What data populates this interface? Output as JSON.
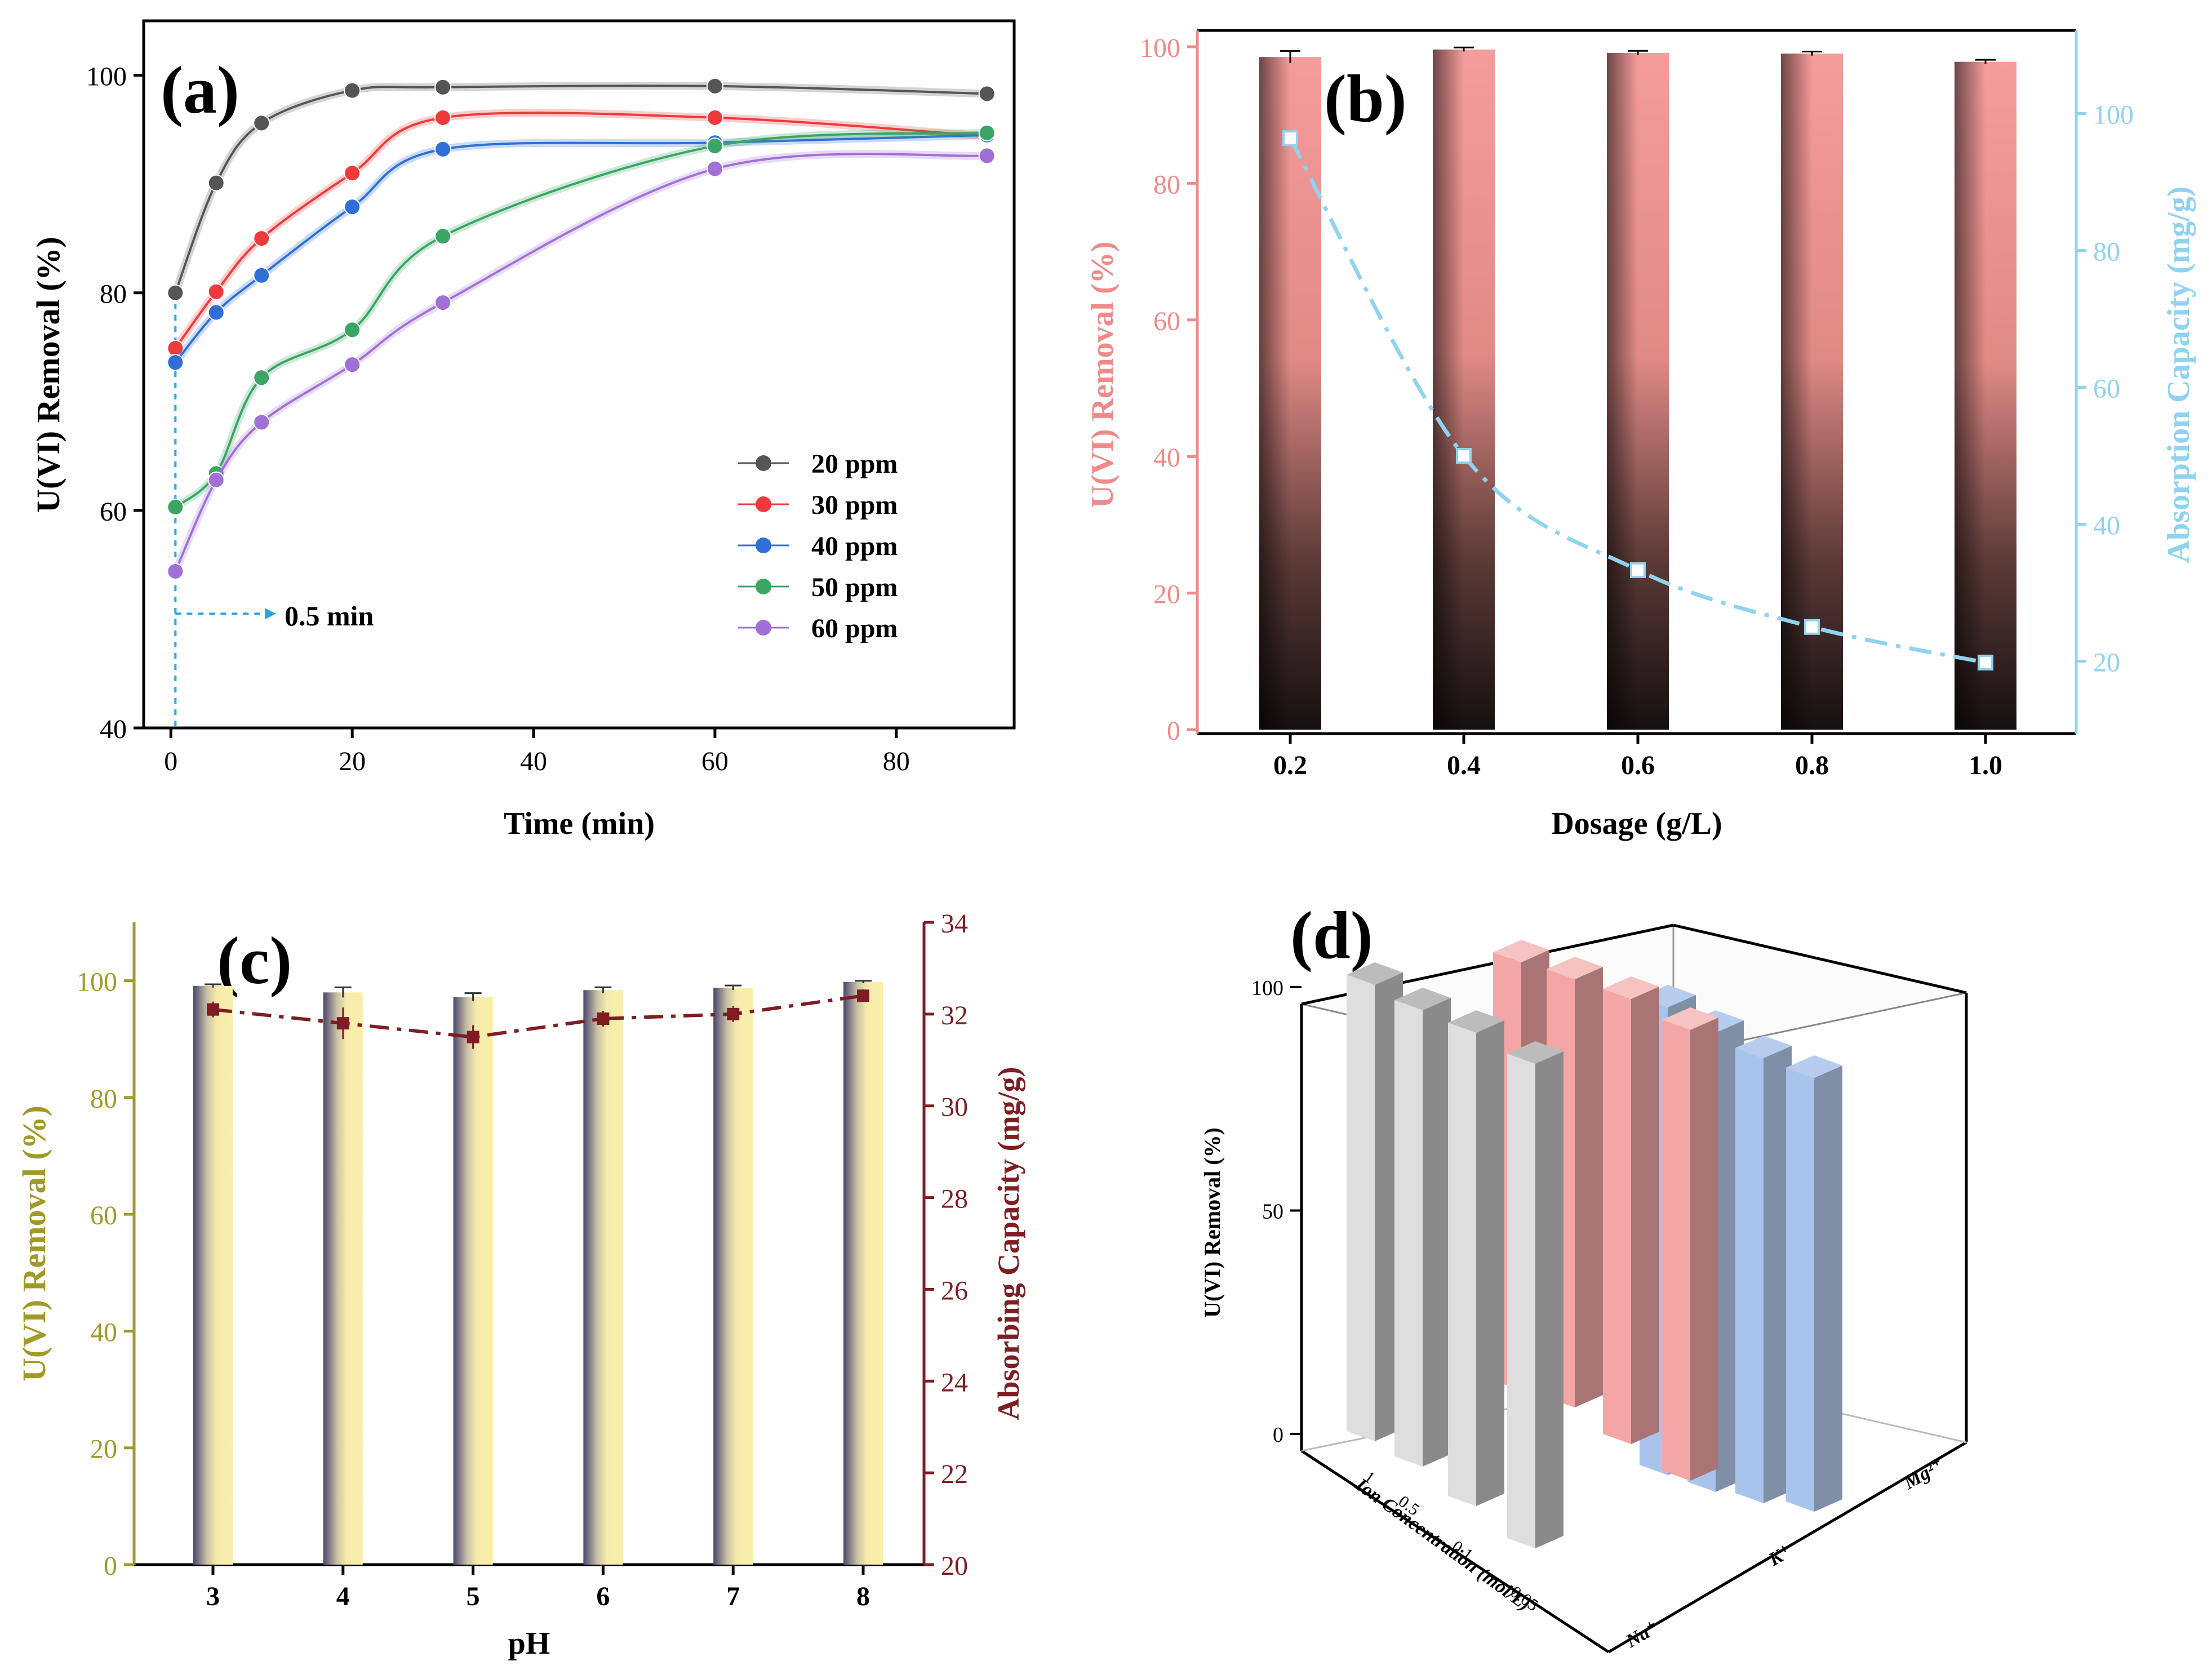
{
  "chart_data": [
    {
      "panel": "(a)",
      "type": "line",
      "xlabel": "Time (min)",
      "ylabel": "U(VI) Removal (%)",
      "xlim": [
        -3,
        93
      ],
      "ylim": [
        40,
        105
      ],
      "xticks": [
        0,
        20,
        40,
        60,
        80
      ],
      "yticks": [
        40,
        60,
        80,
        100
      ],
      "x": [
        0.5,
        5,
        10,
        20,
        30,
        60,
        90
      ],
      "series": [
        {
          "name": "20 ppm",
          "color": "#555555",
          "values": [
            80.0,
            90.1,
            95.6,
            98.6,
            98.9,
            99.0,
            98.3
          ]
        },
        {
          "name": "30 ppm",
          "color": "#ee3a3a",
          "values": [
            74.9,
            80.1,
            85.0,
            91.0,
            96.1,
            96.1,
            94.4
          ]
        },
        {
          "name": "40 ppm",
          "color": "#2f6fd6",
          "values": [
            73.6,
            78.2,
            81.6,
            87.9,
            93.2,
            93.8,
            94.5
          ]
        },
        {
          "name": "50 ppm",
          "color": "#3aa564",
          "values": [
            60.3,
            63.4,
            72.2,
            76.6,
            85.2,
            93.5,
            94.7
          ]
        },
        {
          "name": "60 ppm",
          "color": "#a070d6",
          "values": [
            54.4,
            62.8,
            68.1,
            73.4,
            79.1,
            91.4,
            92.6
          ]
        }
      ],
      "annotation": "0.5 min"
    },
    {
      "panel": "(b)",
      "type": "bar",
      "xlabel": "Dosage (g/L)",
      "ylabel": "U(VI) Removal (%)",
      "ylabel_right": "Absorption Capacity (mg/g)",
      "categories": [
        "0.2",
        "0.4",
        "0.6",
        "0.8",
        "1.0"
      ],
      "ylim": [
        0,
        100
      ],
      "yticks": [
        0,
        20,
        40,
        60,
        80,
        100
      ],
      "ylim_right": [
        10,
        110
      ],
      "yticks_right": [
        20,
        40,
        60,
        80,
        100
      ],
      "series": [
        {
          "name": "U(VI) Removal (%)",
          "color": "#f4a2a2",
          "values": [
            98.5,
            99.6,
            99.1,
            99.0,
            97.8
          ],
          "errors": [
            0.9,
            0.3,
            0.3,
            0.3,
            0.3
          ]
        },
        {
          "name": "Absorption Capacity (mg/g)",
          "color": "#8fd3f0",
          "values": [
            96.4,
            50.0,
            33.3,
            25.0,
            19.8
          ]
        }
      ]
    },
    {
      "panel": "(c)",
      "type": "bar",
      "xlabel": "pH",
      "ylabel": "U(VI) Removal (%)",
      "ylabel_right": "Absorbing Capacity (mg/g)",
      "categories": [
        "3",
        "4",
        "5",
        "6",
        "7",
        "8"
      ],
      "ylim": [
        0,
        110
      ],
      "yticks": [
        0,
        20,
        40,
        60,
        80,
        100
      ],
      "ylim_right": [
        20,
        34
      ],
      "yticks_right": [
        20,
        22,
        24,
        26,
        28,
        30,
        32,
        34
      ],
      "series": [
        {
          "name": "U(VI) Removal (%)",
          "color": "#f6eba0",
          "values": [
            99.1,
            98.0,
            97.2,
            98.4,
            98.8,
            99.8
          ],
          "errors": [
            0.3,
            0.9,
            0.7,
            0.5,
            0.4,
            0.2
          ]
        },
        {
          "name": "Absorbing Capacity (mg/g)",
          "color": "#7e1d22",
          "values": [
            32.1,
            31.8,
            31.5,
            31.9,
            32.0,
            32.4
          ],
          "errors": [
            0.1,
            0.2,
            0.15,
            0.1,
            0.1,
            0.08
          ]
        }
      ]
    },
    {
      "panel": "(d)",
      "type": "bar",
      "ylabel": "U(VI) Removal (%)",
      "xlabel": "Ion Concentration (mol/L)",
      "categories": [
        "1",
        "0.5",
        "0.1",
        "0.05"
      ],
      "ions": [
        "Na⁺",
        "K⁺",
        "Mg²⁺"
      ],
      "zlim": [
        0,
        100
      ],
      "zticks": [
        0,
        50,
        100
      ],
      "series": [
        {
          "name": "Na⁺",
          "color": "#9a9a9a",
          "values": [
            97,
            97,
            97,
            97
          ]
        },
        {
          "name": "K⁺",
          "color": "#f4a6a6",
          "values": [
            99,
            99,
            99,
            99
          ]
        },
        {
          "name": "Mg²⁺",
          "color": "#a9c4ec",
          "values": [
            100,
            100,
            100,
            100
          ]
        }
      ]
    }
  ],
  "tick_labels": {
    "a_x": [
      "0",
      "20",
      "40",
      "60",
      "80"
    ],
    "a_y": [
      "40",
      "60",
      "80",
      "100"
    ],
    "b_y": [
      "0",
      "20",
      "40",
      "60",
      "80",
      "100"
    ],
    "b_yr": [
      "20",
      "40",
      "60",
      "80",
      "100"
    ],
    "c_y": [
      "0",
      "20",
      "40",
      "60",
      "80",
      "100"
    ],
    "c_yr": [
      "20",
      "22",
      "24",
      "26",
      "28",
      "30",
      "32",
      "34"
    ],
    "c_x": [
      "3",
      "4",
      "5",
      "6",
      "7",
      "8"
    ],
    "d_z": [
      "0",
      "50",
      "100"
    ],
    "d_conc": [
      "1",
      "0.5",
      "0.1",
      "0.05"
    ],
    "d_ion": [
      "Na⁺",
      "K⁺",
      "Mg²⁺"
    ]
  },
  "colors": {
    "removal_b": "#f08a8a",
    "capacity_b": "#8fd3f0",
    "removal_c": "#a09a28",
    "capacity_c": "#7e1d22"
  }
}
